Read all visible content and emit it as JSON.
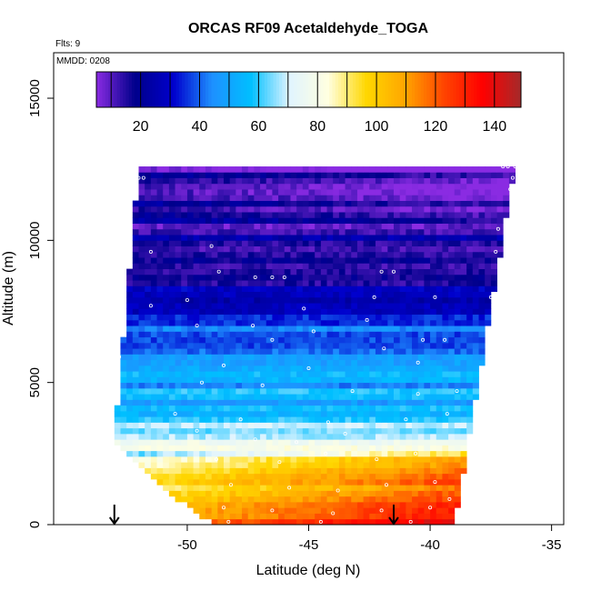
{
  "chart_data": {
    "type": "heatmap",
    "title": "ORCAS RF09 Acetaldehyde_TOGA",
    "flights_label": "Flts: 9",
    "date_label": "MMDD: 0208",
    "xlabel": "Latitude (deg N)",
    "ylabel": "Altitude (m)",
    "xlim": [
      -55.5,
      -34.5
    ],
    "ylim": [
      0,
      16600
    ],
    "xticks": [
      -50,
      -45,
      -40,
      -35
    ],
    "yticks": [
      0,
      5000,
      10000,
      15000
    ],
    "grid": false,
    "colorbar": {
      "placement": "top-inset",
      "range": [
        5,
        149
      ],
      "ticks": [
        20,
        40,
        60,
        80,
        100,
        120,
        140
      ],
      "colors": [
        "#8a2be2",
        "#00008b",
        "#0000cd",
        "#1e90ff",
        "#00bfff",
        "#e0f4ff",
        "#ffffe0",
        "#ffd700",
        "#ffa500",
        "#ff4500",
        "#ff0000",
        "#a52a2a"
      ]
    },
    "arrows_latitude": [
      -53.0,
      -41.5
    ],
    "data_extent": {
      "lat_min_at_bottom": -48.5,
      "lat_min_at_3000m": -53.0,
      "lat_min_at_top": -52.0,
      "lat_max_at_bottom": -39.0,
      "lat_max_at_top": -36.5,
      "alt_min": 0,
      "alt_max": 12600
    },
    "altitude_layers": [
      {
        "alt_from": 0,
        "alt_to": 800,
        "value": 128
      },
      {
        "alt_from": 800,
        "alt_to": 1800,
        "value": 112
      },
      {
        "alt_from": 1800,
        "alt_to": 2500,
        "value": 95
      },
      {
        "alt_from": 2500,
        "alt_to": 3200,
        "value": 75
      },
      {
        "alt_from": 3200,
        "alt_to": 4500,
        "value": 58
      },
      {
        "alt_from": 4500,
        "alt_to": 6000,
        "value": 48
      },
      {
        "alt_from": 6000,
        "alt_to": 8000,
        "value": 40
      },
      {
        "alt_from": 8000,
        "alt_to": 9500,
        "value": 20
      },
      {
        "alt_from": 9500,
        "alt_to": 10700,
        "value": 18
      },
      {
        "alt_from": 10700,
        "alt_to": 12600,
        "value": 10
      }
    ],
    "sample_points": [
      {
        "lat": -52.0,
        "alt": 12200
      },
      {
        "lat": -51.8,
        "alt": 12200
      },
      {
        "lat": -37.0,
        "alt": 12600
      },
      {
        "lat": -36.8,
        "alt": 12600
      },
      {
        "lat": -36.5,
        "alt": 12600
      },
      {
        "lat": -36.6,
        "alt": 12200
      },
      {
        "lat": -36.7,
        "alt": 11800
      },
      {
        "lat": -49.0,
        "alt": 9800
      },
      {
        "lat": -51.5,
        "alt": 9600
      },
      {
        "lat": -48.7,
        "alt": 8900
      },
      {
        "lat": -47.2,
        "alt": 8700
      },
      {
        "lat": -46.5,
        "alt": 8700
      },
      {
        "lat": -46.0,
        "alt": 8700
      },
      {
        "lat": -42.0,
        "alt": 8900
      },
      {
        "lat": -41.5,
        "alt": 8900
      },
      {
        "lat": -37.3,
        "alt": 9600
      },
      {
        "lat": -37.2,
        "alt": 10400
      },
      {
        "lat": -50.0,
        "alt": 7900
      },
      {
        "lat": -42.3,
        "alt": 8000
      },
      {
        "lat": -39.8,
        "alt": 8000
      },
      {
        "lat": -37.5,
        "alt": 8000
      },
      {
        "lat": -51.5,
        "alt": 7700
      },
      {
        "lat": -49.6,
        "alt": 7000
      },
      {
        "lat": -47.3,
        "alt": 7000
      },
      {
        "lat": -45.2,
        "alt": 7600
      },
      {
        "lat": -42.6,
        "alt": 7200
      },
      {
        "lat": -40.3,
        "alt": 6500
      },
      {
        "lat": -39.4,
        "alt": 6500
      },
      {
        "lat": -46.5,
        "alt": 6500
      },
      {
        "lat": -44.8,
        "alt": 6800
      },
      {
        "lat": -41.9,
        "alt": 6200
      },
      {
        "lat": -52.8,
        "alt": 5900
      },
      {
        "lat": -48.5,
        "alt": 5600
      },
      {
        "lat": -45.0,
        "alt": 5500
      },
      {
        "lat": -40.5,
        "alt": 5700
      },
      {
        "lat": -49.4,
        "alt": 5000
      },
      {
        "lat": -46.9,
        "alt": 4900
      },
      {
        "lat": -43.2,
        "alt": 4700
      },
      {
        "lat": -40.5,
        "alt": 4600
      },
      {
        "lat": -38.9,
        "alt": 4700
      },
      {
        "lat": -53.3,
        "alt": 4100
      },
      {
        "lat": -50.5,
        "alt": 3900
      },
      {
        "lat": -47.8,
        "alt": 3700
      },
      {
        "lat": -44.2,
        "alt": 3600
      },
      {
        "lat": -41.0,
        "alt": 3700
      },
      {
        "lat": -39.3,
        "alt": 3900
      },
      {
        "lat": -53.1,
        "alt": 3200
      },
      {
        "lat": -49.6,
        "alt": 3300
      },
      {
        "lat": -47.2,
        "alt": 3000
      },
      {
        "lat": -45.5,
        "alt": 2900
      },
      {
        "lat": -43.5,
        "alt": 3200
      },
      {
        "lat": -48.8,
        "alt": 2300
      },
      {
        "lat": -46.2,
        "alt": 2200
      },
      {
        "lat": -44.3,
        "alt": 2500
      },
      {
        "lat": -42.2,
        "alt": 2300
      },
      {
        "lat": -40.6,
        "alt": 2500
      },
      {
        "lat": -48.2,
        "alt": 1400
      },
      {
        "lat": -45.8,
        "alt": 1300
      },
      {
        "lat": -43.8,
        "alt": 1200
      },
      {
        "lat": -41.8,
        "alt": 1400
      },
      {
        "lat": -39.8,
        "alt": 1500
      },
      {
        "lat": -48.5,
        "alt": 600
      },
      {
        "lat": -46.5,
        "alt": 500
      },
      {
        "lat": -44.0,
        "alt": 400
      },
      {
        "lat": -42.0,
        "alt": 500
      },
      {
        "lat": -40.0,
        "alt": 600
      },
      {
        "lat": -39.2,
        "alt": 900
      },
      {
        "lat": -48.3,
        "alt": 100
      },
      {
        "lat": -44.5,
        "alt": 100
      },
      {
        "lat": -40.8,
        "alt": 100
      }
    ]
  }
}
